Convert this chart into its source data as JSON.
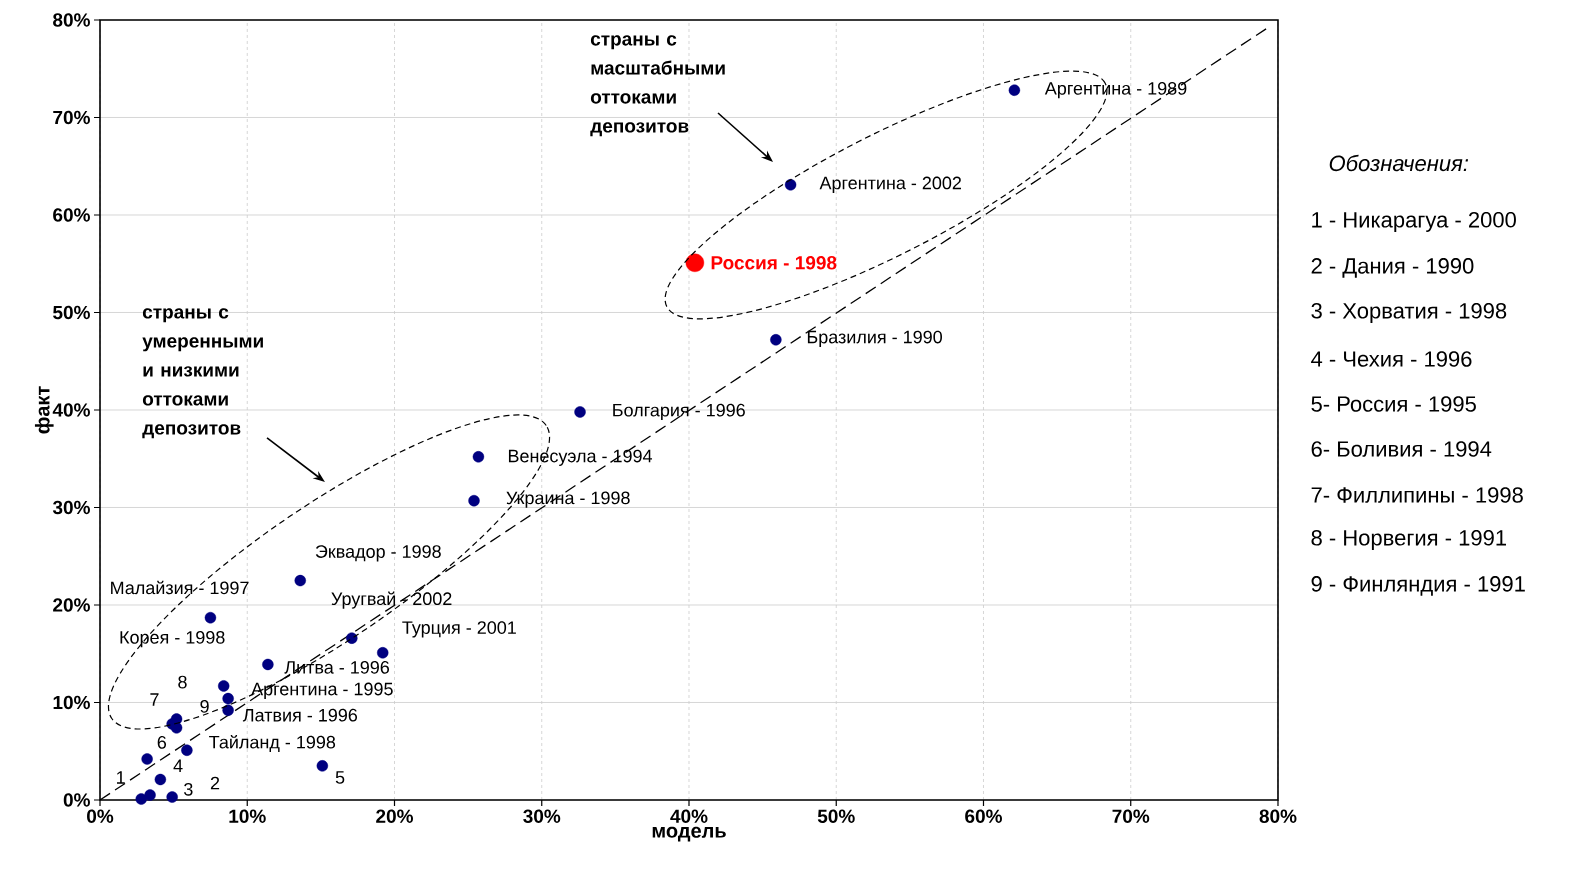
{
  "chart_data": {
    "type": "scatter",
    "xlabel": "модель",
    "ylabel": "факт",
    "xlim": [
      0,
      80
    ],
    "ylim": [
      0,
      80
    ],
    "xticks": [
      {
        "value": 0,
        "label": "0%"
      },
      {
        "value": 10,
        "label": "10%"
      },
      {
        "value": 20,
        "label": "20%"
      },
      {
        "value": 30,
        "label": "30%"
      },
      {
        "value": 40,
        "label": "40%"
      },
      {
        "value": 50,
        "label": "50%"
      },
      {
        "value": 60,
        "label": "60%"
      },
      {
        "value": 70,
        "label": "70%"
      },
      {
        "value": 80,
        "label": "80%"
      }
    ],
    "yticks": [
      {
        "value": 0,
        "label": "0%"
      },
      {
        "value": 10,
        "label": "10%"
      },
      {
        "value": 20,
        "label": "20%"
      },
      {
        "value": 30,
        "label": "30%"
      },
      {
        "value": 40,
        "label": "40%"
      },
      {
        "value": 50,
        "label": "50%"
      },
      {
        "value": 60,
        "label": "60%"
      },
      {
        "value": 70,
        "label": "70%"
      },
      {
        "value": 80,
        "label": "80%"
      }
    ],
    "grid": true,
    "series": [
      {
        "type": "line",
        "color": "#000000",
        "line_style": "dashed",
        "marker": "none",
        "x": [
          0,
          79.3
        ],
        "values": [
          0,
          79.2
        ]
      },
      {
        "color": "#000080",
        "marker": "circle",
        "x": [
          62.1,
          46.9,
          45.9,
          32.6,
          25.7,
          25.4,
          13.6,
          7.5,
          17.1,
          19.2,
          11.4,
          8.4,
          8.7,
          8.7,
          5.9,
          3.2,
          15.1,
          4.1,
          2.8,
          3.4,
          4.9,
          4.9,
          5.2,
          5.2
        ],
        "values": [
          72.8,
          63.1,
          47.2,
          39.8,
          35.2,
          30.7,
          22.5,
          18.7,
          16.6,
          15.1,
          13.9,
          11.7,
          10.4,
          9.2,
          5.1,
          4.2,
          3.5,
          2.1,
          0.1,
          0.5,
          0.3,
          7.8,
          8.3,
          7.4
        ]
      },
      {
        "name": "Россия - 1998",
        "color": "#ff0000",
        "marker": "circle",
        "x": [
          40.4
        ],
        "values": [
          55.1
        ]
      }
    ],
    "annotations": [
      "страны с масштабными оттоками депозитов",
      "страны с умеренными и низкими оттоками депозитов",
      "Обозначения:",
      "1 - Никарагуа - 2000",
      "2 - Дания - 1990",
      "3 - Хорватия - 1998",
      "4 - Чехия - 1996",
      "5- Россия - 1995",
      "6- Боливия - 1994",
      "7- Филлипины - 1998",
      "8 - Норвегия - 1991",
      "9 - Финляндия - 1991",
      {
        "text": "Аргентина - 1989",
        "x": 62.1,
        "y": 72.8
      },
      {
        "text": "Аргентина - 2002",
        "x": 46.9,
        "y": 63.1
      },
      {
        "text": "Бразилия - 1990",
        "x": 45.9,
        "y": 47.2
      },
      {
        "text": "Болгария - 1996",
        "x": 32.6,
        "y": 39.8
      },
      {
        "text": "Венесуэла - 1994",
        "x": 25.7,
        "y": 35.2
      },
      {
        "text": "Украина - 1998",
        "x": 25.4,
        "y": 30.7
      },
      {
        "text": "Эквадор - 1998",
        "x": 13.6,
        "y": 22.5
      },
      {
        "text": "Малайзия - 1997",
        "x": 7.5,
        "y": 18.7
      },
      {
        "text": "Уругвай - 2002",
        "x": 17.1,
        "y": 16.6
      },
      {
        "text": "Турция - 2001",
        "x": 19.2,
        "y": 15.1
      },
      {
        "text": "Литва - 1996",
        "x": 11.4,
        "y": 13.9
      },
      {
        "text": "Корея - 1998",
        "x": 8.4,
        "y": 11.7
      },
      {
        "text": "Аргентина - 1995",
        "x": 8.7,
        "y": 10.4
      },
      {
        "text": "Латвия - 1996",
        "x": 8.7,
        "y": 9.2
      },
      {
        "text": "Тайланд - 1998",
        "x": 5.9,
        "y": 5.1
      },
      {
        "text": "6",
        "x": 3.2,
        "y": 4.2
      },
      {
        "text": "5",
        "x": 15.1,
        "y": 3.5
      },
      {
        "text": "4",
        "x": 4.1,
        "y": 2.1
      },
      {
        "text": "1",
        "x": 2.8,
        "y": 0.1
      },
      {
        "text": "3",
        "x": 4.9,
        "y": 0.3
      },
      {
        "text": "7",
        "x": 4.9,
        "y": 7.8
      },
      {
        "text": "8",
        "x": 5.2,
        "y": 8.3
      },
      {
        "text": "9",
        "x": 5.2,
        "y": 7.4
      },
      "2"
    ]
  }
}
